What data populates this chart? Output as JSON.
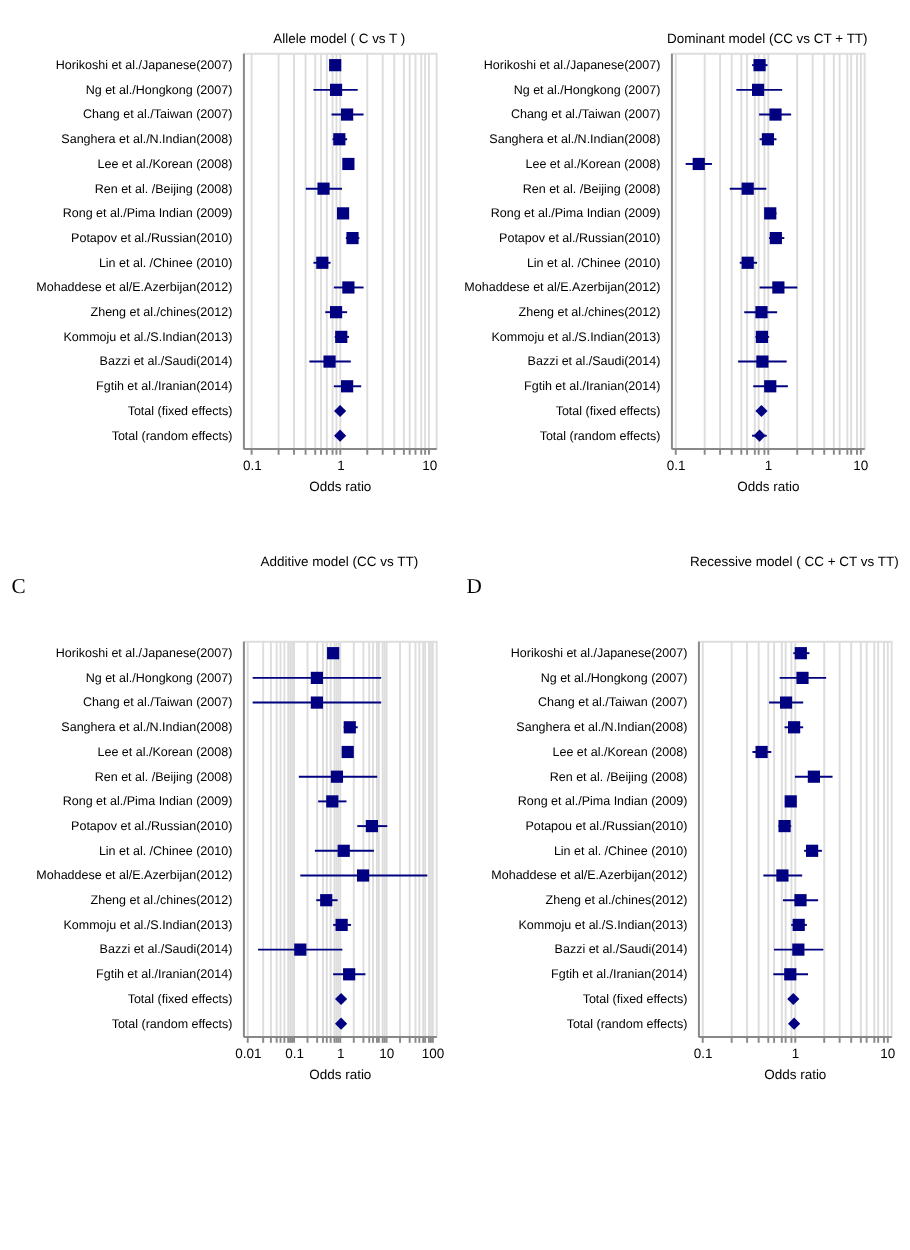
{
  "chart_data": [
    {
      "type": "scatter",
      "orientation": "horizontal",
      "title": "Allele model ( C vs T )",
      "xlabel": "Odds ratio",
      "log": "x",
      "grid": "x",
      "categories": [
        "Horikoshi et al./Japanese(2007)",
        "Ng et al./Hongkong (2007)",
        "Chang et al./Taiwan (2007)",
        "Sanghera et al./N.Indian(2008)",
        "Lee  et al./Korean (2008)",
        "Ren et al. /Beijing (2008)",
        "Rong et al./Pima Indian (2009)",
        "Potapov et al./Russian(2010)",
        "Lin et al. /Chinee (2010)",
        "Mohaddese  et al/E.Azerbijan(2012)",
        "Zheng et al./chines(2012)",
        "Kommoju et al./S.Indian(2013)",
        "Bazzi et al./Saudi(2014)",
        "Fgtih et al./Iranian(2014)",
        "Total (fixed effects)",
        "Total (random effects)"
      ],
      "xlim": [
        0.08,
        12
      ],
      "xticks": [
        0.1,
        {
          "value": 0.2,
          "label": null
        },
        {
          "value": 0.3,
          "label": null
        },
        {
          "value": 0.4,
          "label": null
        },
        {
          "value": 0.5,
          "label": null
        },
        {
          "value": 0.6,
          "label": null
        },
        {
          "value": 0.7,
          "label": null
        },
        {
          "value": 0.8,
          "label": null
        },
        {
          "value": 0.9,
          "label": null
        },
        1,
        {
          "value": 2,
          "label": null
        },
        {
          "value": 3,
          "label": null
        },
        {
          "value": 4,
          "label": null
        },
        {
          "value": 5,
          "label": null
        },
        {
          "value": 6,
          "label": null
        },
        {
          "value": 7,
          "label": null
        },
        {
          "value": 8,
          "label": null
        },
        {
          "value": 9,
          "label": null
        },
        10
      ],
      "series": [
        {
          "marker": "square",
          "color": "#000080",
          "values": [
            0.88,
            0.9,
            1.2,
            0.98,
            1.24,
            0.65,
            1.08,
            1.38,
            0.63,
            1.24,
            0.9,
            1.03,
            0.76,
            1.2,
            null,
            null
          ],
          "errors": [
            [
              0.8,
              0.97
            ],
            [
              0.5,
              1.58
            ],
            [
              0.8,
              1.84
            ],
            [
              0.82,
              1.2
            ],
            [
              1.08,
              1.42
            ],
            [
              0.41,
              1.05
            ],
            [
              0.93,
              1.26
            ],
            [
              1.16,
              1.65
            ],
            [
              0.5,
              0.78
            ],
            [
              0.85,
              1.84
            ],
            [
              0.68,
              1.2
            ],
            [
              0.87,
              1.26
            ],
            [
              0.45,
              1.32
            ],
            [
              0.85,
              1.73
            ],
            null,
            null
          ]
        },
        {
          "marker": "diamond",
          "color": "#000080",
          "values": [
            null,
            null,
            null,
            null,
            null,
            null,
            null,
            null,
            null,
            null,
            null,
            null,
            null,
            null,
            1.0,
            1.0
          ],
          "errors": [
            null,
            null,
            null,
            null,
            null,
            null,
            null,
            null,
            null,
            null,
            null,
            null,
            null,
            null,
            [
              0.96,
              1.04
            ],
            [
              0.92,
              1.08
            ]
          ]
        }
      ]
    },
    {
      "type": "scatter",
      "orientation": "horizontal",
      "title": "Dominant model (CC vs CT + TT)",
      "xlabel": "Odds ratio",
      "log": "x",
      "grid": "x",
      "categories": [
        "Horikoshi et al./Japanese(2007)",
        "Ng et al./Hongkong (2007)",
        "Chang et al./Taiwan (2007)",
        "Sanghera et al./N.Indian(2008)",
        "Lee  et al./Korean (2008)",
        "Ren et al. /Beijing (2008)",
        "Rong et al./Pima Indian (2009)",
        "Potapov et al./Russian(2010)",
        "Lin et al. /Chinee (2010)",
        "Mohaddese  et al/E.Azerbijan(2012)",
        "Zheng et al./chines(2012)",
        "Kommoju et al./S.Indian(2013)",
        "Bazzi et al./Saudi(2014)",
        "Fgtih et al./Iranian(2014)",
        "Total (fixed effects)",
        "Total (random effects)"
      ],
      "xlim": [
        0.09,
        11
      ],
      "xticks": [
        0.1,
        {
          "value": 0.2,
          "label": null
        },
        {
          "value": 0.3,
          "label": null
        },
        {
          "value": 0.4,
          "label": null
        },
        {
          "value": 0.5,
          "label": null
        },
        {
          "value": 0.6,
          "label": null
        },
        {
          "value": 0.7,
          "label": null
        },
        {
          "value": 0.8,
          "label": null
        },
        {
          "value": 0.9,
          "label": null
        },
        1,
        {
          "value": 2,
          "label": null
        },
        {
          "value": 3,
          "label": null
        },
        {
          "value": 4,
          "label": null
        },
        {
          "value": 5,
          "label": null
        },
        {
          "value": 6,
          "label": null
        },
        {
          "value": 7,
          "label": null
        },
        {
          "value": 8,
          "label": null
        },
        {
          "value": 9,
          "label": null
        },
        10
      ],
      "series": [
        {
          "marker": "square",
          "color": "#000080",
          "values": [
            0.82,
            0.79,
            1.22,
            1.01,
            0.18,
            0.61,
            1.07,
            1.23,
            0.61,
            1.31,
            0.86,
            0.87,
            0.88,
            1.07,
            null,
            null
          ],
          "errors": [
            [
              0.68,
              1.0
            ],
            [
              0.46,
              1.44
            ],
            [
              0.81,
              1.8
            ],
            [
              0.82,
              1.25
            ],
            [
              0.13,
              0.25
            ],
            [
              0.39,
              0.97
            ],
            [
              0.93,
              1.25
            ],
            [
              1.04,
              1.52
            ],
            [
              0.5,
              0.77
            ],
            [
              0.82,
              2.1
            ],
            [
              0.56,
              1.27
            ],
            [
              0.74,
              1.04
            ],
            [
              0.48,
              1.61
            ],
            [
              0.7,
              1.66
            ],
            null,
            null
          ]
        },
        {
          "marker": "diamond",
          "color": "#000080",
          "values": [
            null,
            null,
            null,
            null,
            null,
            null,
            null,
            null,
            null,
            null,
            null,
            null,
            null,
            null,
            0.86,
            0.82
          ],
          "errors": [
            null,
            null,
            null,
            null,
            null,
            null,
            null,
            null,
            null,
            null,
            null,
            null,
            null,
            null,
            [
              0.82,
              0.9
            ],
            [
              0.68,
              0.98
            ]
          ]
        }
      ]
    },
    {
      "type": "scatter",
      "orientation": "horizontal",
      "title": "Additive model (CC vs TT)",
      "xlabel": "Odds ratio",
      "log": "x",
      "grid": "x",
      "annotations": [
        "C"
      ],
      "categories": [
        "Horikoshi et al./Japanese(2007)",
        "Ng et al./Hongkong (2007)",
        "Chang et al./Taiwan (2007)",
        "Sanghera et al./N.Indian(2008)",
        "Lee et al./Korean (2008)",
        "Ren et al. /Beijing (2008)",
        "Rong et al./Pima Indian (2009)",
        "Potapov et al./Russian(2010)",
        "Lin et al. /Chinee (2010)",
        "Mohaddese  et al/E.Azerbijan(2012)",
        "Zheng et al./chines(2012)",
        "Kommoju et al./S.Indian(2013)",
        "Bazzi et al./Saudi(2014)",
        "Fgtih et al./Iranian(2014)",
        "Total (fixed effects)",
        "Total (random effects)"
      ],
      "xlim": [
        0.008,
        120
      ],
      "xticks": [
        0.01,
        {
          "value": 0.02,
          "label": null
        },
        {
          "value": 0.03,
          "label": null
        },
        {
          "value": 0.04,
          "label": null
        },
        {
          "value": 0.05,
          "label": null
        },
        {
          "value": 0.06,
          "label": null
        },
        {
          "value": 0.07,
          "label": null
        },
        {
          "value": 0.08,
          "label": null
        },
        {
          "value": 0.09,
          "label": null
        },
        0.1,
        {
          "value": 0.2,
          "label": null
        },
        {
          "value": 0.3,
          "label": null
        },
        {
          "value": 0.4,
          "label": null
        },
        {
          "value": 0.5,
          "label": null
        },
        {
          "value": 0.6,
          "label": null
        },
        {
          "value": 0.7,
          "label": null
        },
        {
          "value": 0.8,
          "label": null
        },
        {
          "value": 0.9,
          "label": null
        },
        1,
        {
          "value": 2,
          "label": null
        },
        {
          "value": 3,
          "label": null
        },
        {
          "value": 4,
          "label": null
        },
        {
          "value": 5,
          "label": null
        },
        {
          "value": 6,
          "label": null
        },
        {
          "value": 7,
          "label": null
        },
        {
          "value": 8,
          "label": null
        },
        {
          "value": 9,
          "label": null
        },
        10,
        {
          "value": 20,
          "label": null
        },
        {
          "value": 30,
          "label": null
        },
        {
          "value": 40,
          "label": null
        },
        {
          "value": 50,
          "label": null
        },
        {
          "value": 60,
          "label": null
        },
        {
          "value": 70,
          "label": null
        },
        {
          "value": 80,
          "label": null
        },
        {
          "value": 90,
          "label": null
        },
        100
      ],
      "series": [
        {
          "marker": "square",
          "color": "#000080",
          "values": [
            0.72,
            0.32,
            0.32,
            1.65,
            1.49,
            0.87,
            0.69,
            4.97,
            1.22,
            3.2,
            0.51,
            1.1,
            0.14,
            1.6,
            null,
            null
          ],
          "errors": [
            [
              0.55,
              0.94
            ],
            [
              0.013,
              7.9
            ],
            [
              0.013,
              7.9
            ],
            [
              1.22,
              2.46
            ],
            [
              1.18,
              1.95
            ],
            [
              0.13,
              6.5
            ],
            [
              0.34,
              1.4
            ],
            [
              2.4,
              10.7
            ],
            [
              0.29,
              5.5
            ],
            [
              0.14,
              79
            ],
            [
              0.31,
              0.9
            ],
            [
              0.72,
              1.76
            ],
            [
              0.017,
              1.14
            ],
            [
              0.72,
              3.6
            ],
            null,
            null
          ]
        },
        {
          "marker": "diamond",
          "color": "#000080",
          "values": [
            null,
            null,
            null,
            null,
            null,
            null,
            null,
            null,
            null,
            null,
            null,
            null,
            null,
            null,
            1.07,
            1.07
          ],
          "errors": [
            null,
            null,
            null,
            null,
            null,
            null,
            null,
            null,
            null,
            null,
            null,
            null,
            null,
            null,
            [
              0.98,
              1.17
            ],
            [
              0.87,
              1.3
            ]
          ]
        }
      ]
    },
    {
      "type": "scatter",
      "orientation": "horizontal",
      "title": "Recessive model ( CC + CT vs TT)",
      "xlabel": "Odds ratio",
      "log": "x",
      "grid": "x",
      "annotations": [
        "D"
      ],
      "categories": [
        "Horikoshi et al./Japanese(2007)",
        "Ng et al./Hongkong (2007)",
        "Chang et al./Taiwan (2007)",
        "Sanghera et al./N.Indian(2008)",
        "Lee  et al./Korean (2008)",
        "Ren et al. /Beijing (2008)",
        "Rong et al./Pima Indian (2009)",
        "Potapou et al./Russian(2010)",
        "Lin et al. /Chinee (2010)",
        "Mohaddese  et al/E.Azerbijan(2012)",
        "Zheng et al./chines(2012)",
        "Kommoju et al./S.Indian(2013)",
        "Bazzi et al./Saudi(2014)",
        "Fgtih et al./Iranian(2014)",
        "Total (fixed effects)",
        "Total (random effects)"
      ],
      "xlim": [
        0.09,
        11
      ],
      "xticks": [
        0.1,
        {
          "value": 0.2,
          "label": null
        },
        {
          "value": 0.3,
          "label": null
        },
        {
          "value": 0.4,
          "label": null
        },
        {
          "value": 0.5,
          "label": null
        },
        {
          "value": 0.6,
          "label": null
        },
        {
          "value": 0.7,
          "label": null
        },
        {
          "value": 0.8,
          "label": null
        },
        {
          "value": 0.9,
          "label": null
        },
        1,
        {
          "value": 2,
          "label": null
        },
        {
          "value": 3,
          "label": null
        },
        {
          "value": 4,
          "label": null
        },
        {
          "value": 5,
          "label": null
        },
        {
          "value": 6,
          "label": null
        },
        {
          "value": 7,
          "label": null
        },
        {
          "value": 8,
          "label": null
        },
        {
          "value": 9,
          "label": null
        },
        10
      ],
      "series": [
        {
          "marker": "square",
          "color": "#000080",
          "values": [
            1.17,
            1.22,
            0.81,
            0.99,
            0.44,
            1.62,
            0.91,
            0.78,
            1.55,
            0.74,
            1.16,
            1.11,
            1.1,
            0.9,
            null,
            null
          ],
          "errors": [
            [
              0.97,
              1.45
            ],
            [
              0.69,
              2.2
            ],
            [
              0.53,
              1.24
            ],
            [
              0.78,
              1.24
            ],
            [
              0.35,
              0.56
            ],
            [
              1.01,
              2.58
            ],
            [
              0.81,
              1.04
            ],
            [
              0.67,
              0.92
            ],
            [
              1.27,
              1.98
            ],
            [
              0.46,
              1.21
            ],
            [
              0.75,
              1.8
            ],
            [
              0.92,
              1.36
            ],
            [
              0.6,
              2.05
            ],
            [
              0.59,
              1.4
            ],
            null,
            null
          ]
        },
        {
          "marker": "diamond",
          "color": "#000080",
          "values": [
            null,
            null,
            null,
            null,
            null,
            null,
            null,
            null,
            null,
            null,
            null,
            null,
            null,
            null,
            0.97,
            0.99
          ],
          "errors": [
            null,
            null,
            null,
            null,
            null,
            null,
            null,
            null,
            null,
            null,
            null,
            null,
            null,
            null,
            [
              0.93,
              1.02
            ],
            [
              0.88,
              1.1
            ]
          ]
        }
      ]
    }
  ]
}
